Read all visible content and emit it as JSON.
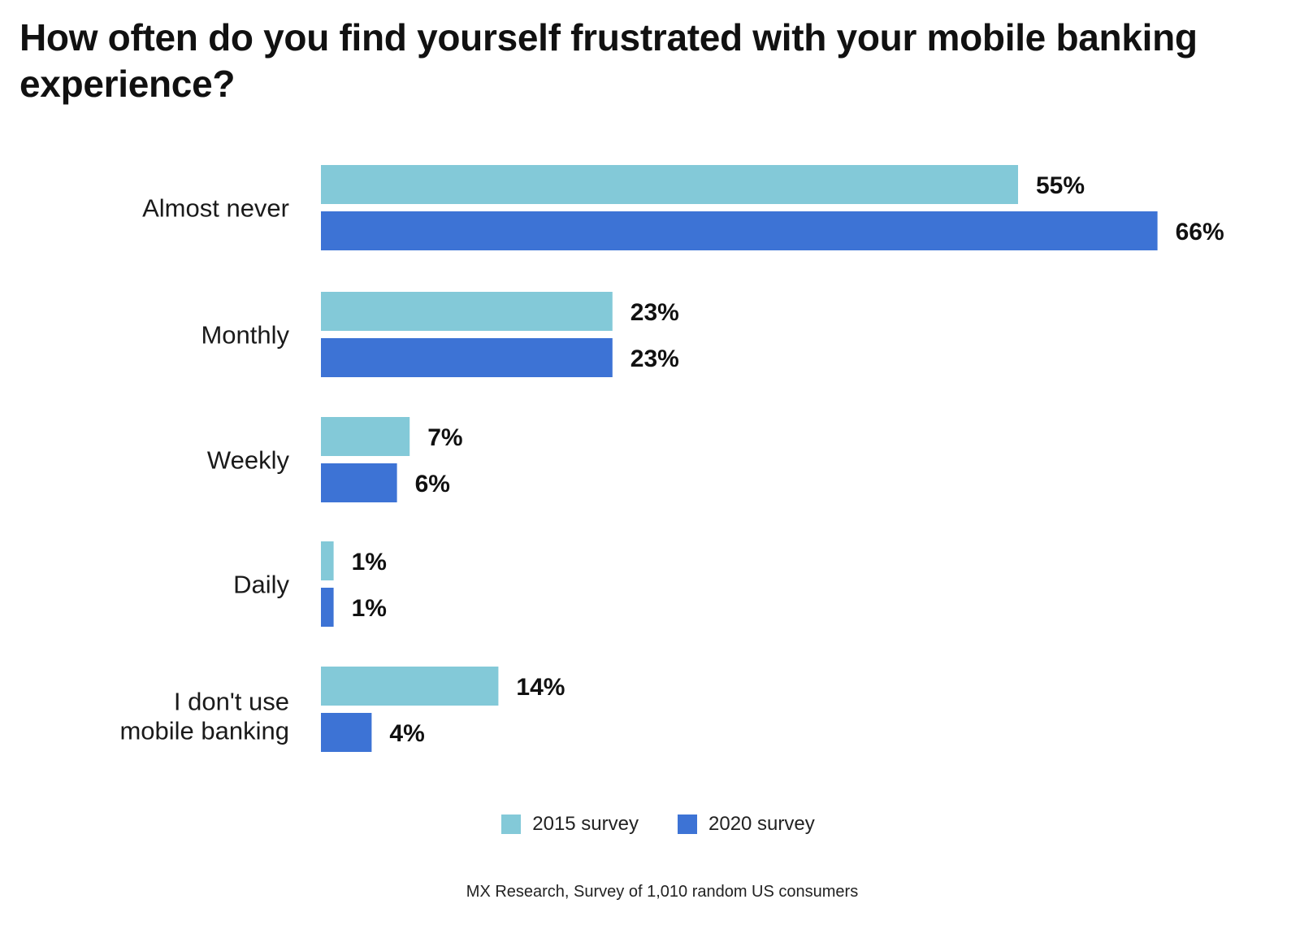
{
  "colors": {
    "series_2015": "#83C9D8",
    "series_2020": "#3D73D5",
    "text": "#111111",
    "background": "#FFFFFF"
  },
  "chart_data": {
    "type": "bar",
    "orientation": "horizontal",
    "title": "How often do you find yourself frustrated with your mobile banking experience?",
    "categories": [
      [
        "Almost never"
      ],
      [
        "Monthly"
      ],
      [
        "Weekly"
      ],
      [
        "Daily"
      ],
      [
        "I don't use",
        "mobile banking"
      ]
    ],
    "series": [
      {
        "name": "2015 survey",
        "values": [
          55,
          23,
          7,
          1,
          14
        ],
        "labels": [
          "55%",
          "23%",
          "7%",
          "1%",
          "14%"
        ]
      },
      {
        "name": "2020 survey",
        "values": [
          66,
          23,
          6,
          1,
          4
        ],
        "labels": [
          "66%",
          "23%",
          "6%",
          "1%",
          "4%"
        ]
      }
    ],
    "unit": "%",
    "xlim": [
      0,
      66
    ],
    "grid": false,
    "axes_visible": false,
    "legend_position": "bottom-center",
    "source": "MX Research, Survey of 1,010 random US consumers"
  }
}
